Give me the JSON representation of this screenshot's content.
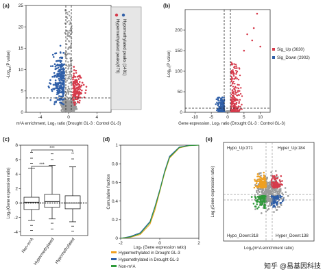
{
  "panels": {
    "a": {
      "label": "(a)",
      "ylabel_main": "-Log",
      "ylabel_sub": "10",
      "ylabel_tail": "(P value)",
      "xlabel": "m⁶A enrichment, Log₂ ratio (Drought GL-3 : Control GL-3)",
      "legend": [
        "Hypermethylated peaks(676)",
        "Hypomethylated peaks (1481)"
      ]
    },
    "b": {
      "label": "(b)",
      "ylabel": "-Log₁₀(P value)",
      "xlabel": "Gene expression, Log₂ ratio (Drought GL-3 : Control GL-3)",
      "legend": [
        "Sig_Up (3630)",
        "Sig_Down (2902)"
      ]
    },
    "c": {
      "label": "(c)",
      "ylabel": "Log₂(Gene expression ratio)",
      "sig_marks": [
        "***",
        "***"
      ]
    },
    "d": {
      "label": "(d)",
      "ylabel": "Cumulative fraction",
      "xlabel": "Log₂ (Gene expression ratio)",
      "legend": [
        "Hypermethylated in Drought GL-3",
        "Hypomethylated in Drought GL-3",
        "Non-m⁶A"
      ]
    },
    "e": {
      "label": "(e)",
      "ylabel": "Log₂(Gene expression ratio)",
      "xlabel": "Log₂(m⁶A enrichment ratio)",
      "quadrants": [
        "Hypo_Up:371",
        "Hyper_Up:184",
        "Hypo_Down:318",
        "Hyper_Down:138"
      ]
    }
  },
  "watermark": "知乎 @易基因科技",
  "colors": {
    "hyper": "#d63a4b",
    "hypo": "#2f5fa8",
    "ns": "#9a9a9a",
    "orange": "#f0a020",
    "green": "#2e9a3a"
  },
  "chart_data": [
    {
      "panel": "a",
      "type": "scatter",
      "title": "",
      "xlabel": "m⁶A enrichment, Log₂ ratio (Drought GL-3 : Control GL-3)",
      "ylabel": "-Log10(P value)",
      "xlim": [
        -6,
        6
      ],
      "ylim": [
        0,
        25
      ],
      "xticks": [
        -4,
        0,
        4
      ],
      "yticks": [
        0,
        5,
        10,
        15,
        20,
        25
      ],
      "thresholds": {
        "x": [
          -0.58,
          0.58
        ],
        "y": 1.3
      },
      "series": [
        {
          "name": "Hypermethylated peaks(676)",
          "count": 676
        },
        {
          "name": "Hypomethylated peaks (1481)",
          "count": 1481
        }
      ]
    },
    {
      "panel": "b",
      "type": "scatter",
      "title": "",
      "xlabel": "Gene expression, Log₂ ratio (Drought GL-3 : Control GL-3)",
      "ylabel": "-Log10(P value)",
      "xlim": [
        -13,
        13
      ],
      "ylim": [
        0,
        250
      ],
      "xticks": [
        -10,
        -5,
        0,
        5,
        10
      ],
      "yticks": [
        0,
        50,
        100,
        150,
        200
      ],
      "thresholds": {
        "x": [
          -1,
          1
        ],
        "y": 2
      },
      "series": [
        {
          "name": "Sig_Up (3630)",
          "count": 3630
        },
        {
          "name": "Sig_Down (2902)",
          "count": 2902
        }
      ]
    },
    {
      "panel": "c",
      "type": "box",
      "title": "",
      "ylabel": "Log₂(Gene expression ratio)",
      "ylim": [
        -4.5,
        8
      ],
      "yticks": [
        -4,
        -2,
        0,
        2,
        4,
        6,
        8
      ],
      "categories": [
        "Non-m⁶A",
        "Hypermethylated",
        "Hypomethylated"
      ],
      "boxes": [
        {
          "min": -2.4,
          "q1": -0.9,
          "median": 0.1,
          "q3": 0.8,
          "max": 4.8,
          "outliers": [
            5.5,
            6.2,
            7.0,
            -3.1,
            -3.8
          ]
        },
        {
          "min": -2.2,
          "q1": -0.6,
          "median": 0.2,
          "q3": 1.2,
          "max": 5.2,
          "outliers": [
            6.0,
            6.8,
            -2.8,
            -3.6
          ]
        },
        {
          "min": -2.6,
          "q1": -0.8,
          "median": 0.0,
          "q3": 1.0,
          "max": 5.0,
          "outliers": [
            6.1,
            6.9,
            -3.2,
            -3.9
          ]
        }
      ],
      "reference_line": 0
    },
    {
      "panel": "d",
      "type": "line",
      "title": "",
      "xlabel": "Log₂ (Gene expression ratio)",
      "ylabel": "Cumulative fraction",
      "xlim": [
        -2,
        2
      ],
      "ylim": [
        0,
        1
      ],
      "xticks": [
        -2,
        0,
        2
      ],
      "yticks": [
        0,
        0.2,
        0.4,
        0.6,
        0.8,
        1.0
      ],
      "series": [
        {
          "name": "Hypermethylated in Drought GL-3",
          "x": [
            -2,
            -1.5,
            -1,
            -0.5,
            -0.25,
            0,
            0.25,
            0.5,
            1,
            1.5,
            2
          ],
          "y": [
            0,
            0.01,
            0.04,
            0.15,
            0.3,
            0.5,
            0.7,
            0.86,
            0.97,
            0.995,
            1
          ]
        },
        {
          "name": "Hypomethylated in Drought GL-3",
          "x": [
            -2,
            -1.5,
            -1,
            -0.5,
            -0.25,
            0,
            0.25,
            0.5,
            1,
            1.5,
            2
          ],
          "y": [
            0,
            0.02,
            0.06,
            0.18,
            0.34,
            0.52,
            0.72,
            0.88,
            0.98,
            0.997,
            1
          ]
        },
        {
          "name": "Non-m⁶A",
          "x": [
            -2,
            -1.5,
            -1,
            -0.5,
            -0.25,
            0,
            0.25,
            0.5,
            1,
            1.5,
            2
          ],
          "y": [
            0,
            0.015,
            0.05,
            0.17,
            0.33,
            0.51,
            0.71,
            0.87,
            0.975,
            0.996,
            1
          ]
        }
      ]
    },
    {
      "panel": "e",
      "type": "scatter",
      "title": "",
      "xlabel": "Log₂(m⁶A enrichment ratio)",
      "ylabel": "Log₂(Gene expression ratio)",
      "xlim": [
        -5,
        5
      ],
      "ylim": [
        -5,
        5
      ],
      "quadrant_counts": {
        "Hypo_Up": 371,
        "Hyper_Up": 184,
        "Hypo_Down": 318,
        "Hyper_Down": 138
      }
    }
  ]
}
